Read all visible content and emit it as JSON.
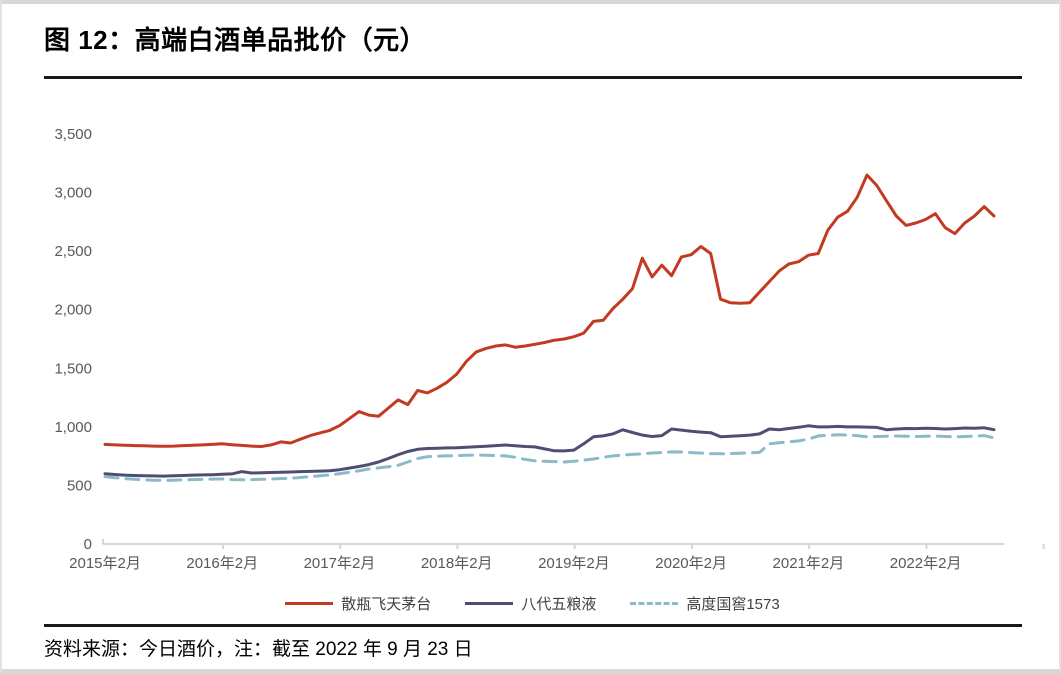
{
  "header": {
    "title": "图 12：高端白酒单品批价（元）"
  },
  "footer": {
    "source_note": "资料来源：今日酒价，注：截至 2022 年 9 月 23 日"
  },
  "colors": {
    "maotai_red": "#c23a21",
    "wuliangye_navy": "#4f4e72",
    "guojiao_blue": "#8cbac9",
    "axis_line": "#d6d6d6",
    "tick_text": "#595959",
    "rule_black": "#17171c"
  },
  "legend": {
    "items": [
      {
        "label": "散瓶飞天茅台",
        "color": "#c23a21",
        "dashed": false
      },
      {
        "label": "八代五粮液",
        "color": "#4f4e72",
        "dashed": false
      },
      {
        "label": "高度国窖1573",
        "color": "#8cbac9",
        "dashed": true
      }
    ]
  },
  "chart_data": {
    "type": "line",
    "title": "高端白酒单品批价（元）",
    "xlabel": "",
    "ylabel": "",
    "x_unit": "month",
    "x_start": "2015-02",
    "x_end": "2022-09",
    "ylim": [
      0,
      3500
    ],
    "grid": false,
    "legend_position": "bottom",
    "y_ticks": [
      {
        "v": 0,
        "label": "0"
      },
      {
        "v": 500,
        "label": "500"
      },
      {
        "v": 1000,
        "label": "1,000"
      },
      {
        "v": 1500,
        "label": "1,500"
      },
      {
        "v": 2000,
        "label": "2,000"
      },
      {
        "v": 2500,
        "label": "2,500"
      },
      {
        "v": 3000,
        "label": "3,000"
      },
      {
        "v": 3500,
        "label": "3,500"
      }
    ],
    "x_ticks": [
      {
        "index": 0,
        "label": "2015年2月"
      },
      {
        "index": 12,
        "label": "2016年2月"
      },
      {
        "index": 24,
        "label": "2017年2月"
      },
      {
        "index": 36,
        "label": "2018年2月"
      },
      {
        "index": 48,
        "label": "2019年2月"
      },
      {
        "index": 60,
        "label": "2020年2月"
      },
      {
        "index": 72,
        "label": "2021年2月"
      },
      {
        "index": 84,
        "label": "2022年2月"
      }
    ],
    "series": [
      {
        "name": "散瓶飞天茅台",
        "color": "#c23a21",
        "dash": null,
        "values": [
          850,
          846,
          843,
          840,
          838,
          836,
          834,
          836,
          840,
          843,
          846,
          850,
          856,
          848,
          842,
          836,
          832,
          846,
          872,
          862,
          895,
          925,
          948,
          970,
          1010,
          1070,
          1130,
          1100,
          1090,
          1160,
          1230,
          1190,
          1310,
          1290,
          1330,
          1380,
          1450,
          1560,
          1640,
          1670,
          1690,
          1700,
          1680,
          1690,
          1705,
          1720,
          1740,
          1750,
          1770,
          1800,
          1900,
          1910,
          2010,
          2090,
          2180,
          2440,
          2280,
          2380,
          2290,
          2450,
          2470,
          2540,
          2480,
          2090,
          2060,
          2055,
          2060,
          2150,
          2240,
          2330,
          2390,
          2410,
          2465,
          2480,
          2680,
          2790,
          2840,
          2960,
          3150,
          3060,
          2930,
          2800,
          2720,
          2740,
          2770,
          2820,
          2700,
          2650,
          2740,
          2800,
          2880,
          2800
        ]
      },
      {
        "name": "八代五粮液",
        "color": "#4f4e72",
        "dash": null,
        "values": [
          600,
          593,
          588,
          585,
          583,
          581,
          580,
          582,
          585,
          588,
          590,
          592,
          595,
          598,
          618,
          606,
          608,
          610,
          613,
          615,
          618,
          620,
          622,
          626,
          634,
          648,
          662,
          678,
          700,
          730,
          762,
          790,
          808,
          815,
          818,
          820,
          822,
          826,
          830,
          835,
          840,
          845,
          838,
          832,
          829,
          812,
          796,
          795,
          802,
          855,
          915,
          923,
          940,
          975,
          952,
          930,
          918,
          925,
          982,
          972,
          962,
          955,
          950,
          916,
          920,
          924,
          930,
          940,
          982,
          976,
          986,
          996,
          1009,
          1000,
          1000,
          1004,
          1000,
          1000,
          998,
          995,
          976,
          982,
          986,
          985,
          988,
          986,
          982,
          985,
          990,
          988,
          992,
          976
        ]
      },
      {
        "name": "高度国窖1573",
        "color": "#8cbac9",
        "dash": "13 8",
        "values": [
          575,
          565,
          558,
          552,
          548,
          545,
          543,
          545,
          548,
          550,
          552,
          554,
          556,
          550,
          548,
          550,
          552,
          555,
          558,
          562,
          568,
          575,
          582,
          590,
          600,
          612,
          625,
          640,
          650,
          660,
          672,
          700,
          730,
          745,
          750,
          752,
          755,
          758,
          760,
          758,
          755,
          752,
          740,
          722,
          710,
          706,
          703,
          700,
          706,
          715,
          726,
          740,
          752,
          760,
          765,
          770,
          777,
          780,
          786,
          785,
          780,
          776,
          772,
          770,
          772,
          775,
          778,
          782,
          855,
          865,
          872,
          880,
          895,
          923,
          928,
          932,
          930,
          925,
          915,
          918,
          920,
          922,
          920,
          918,
          920,
          922,
          918,
          915,
          918,
          920,
          925,
          906
        ]
      }
    ]
  }
}
